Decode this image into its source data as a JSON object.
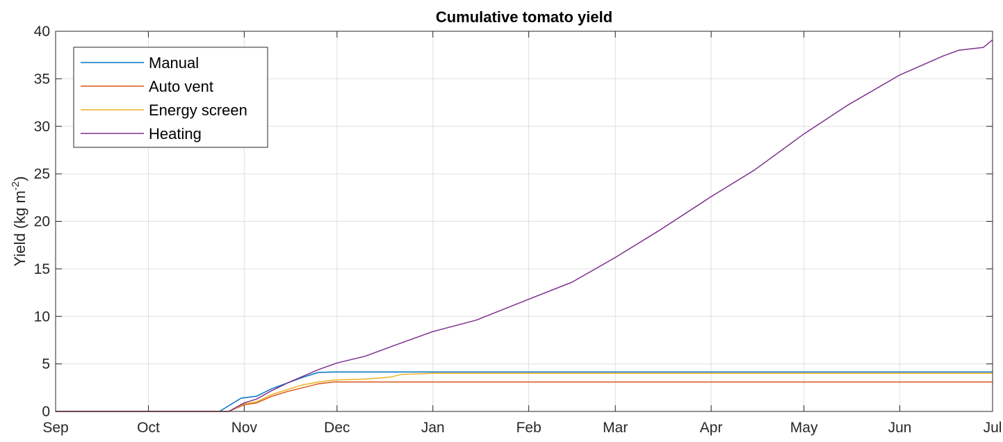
{
  "chart_data": {
    "type": "line",
    "title": "Cumulative tomato yield",
    "xlabel": "",
    "ylabel": "Yield (kg m",
    "ylabel_sup": "-2",
    "ylabel_close": ")",
    "x_ticks": [
      "Sep",
      "Oct",
      "Nov",
      "Dec",
      "Jan",
      "Feb",
      "Mar",
      "Apr",
      "May",
      "Jun",
      "Jul"
    ],
    "y_ticks": [
      "0",
      "5",
      "10",
      "15",
      "20",
      "25",
      "30",
      "35",
      "40"
    ],
    "ylim": [
      0,
      40
    ],
    "grid": true,
    "legend_position": "top-left",
    "series": [
      {
        "name": "Manual",
        "color": "#0072BD",
        "points": [
          [
            "Sep 1",
            0
          ],
          [
            "Oct 24",
            0
          ],
          [
            "Oct 31",
            1.4
          ],
          [
            "Nov 5",
            1.6
          ],
          [
            "Nov 10",
            2.4
          ],
          [
            "Nov 15",
            3.0
          ],
          [
            "Nov 20",
            3.6
          ],
          [
            "Nov 25",
            4.1
          ],
          [
            "Nov 30",
            4.15
          ],
          [
            "Jul 1",
            4.15
          ]
        ]
      },
      {
        "name": "Auto vent",
        "color": "#D95319",
        "points": [
          [
            "Sep 1",
            0
          ],
          [
            "Oct 27",
            0
          ],
          [
            "Nov 1",
            0.7
          ],
          [
            "Nov 5",
            0.9
          ],
          [
            "Nov 10",
            1.6
          ],
          [
            "Nov 15",
            2.1
          ],
          [
            "Nov 20",
            2.5
          ],
          [
            "Nov 25",
            2.9
          ],
          [
            "Nov 30",
            3.1
          ],
          [
            "Jul 1",
            3.1
          ]
        ]
      },
      {
        "name": "Energy screen",
        "color": "#EDB120",
        "points": [
          [
            "Sep 1",
            0
          ],
          [
            "Oct 27",
            0
          ],
          [
            "Nov 1",
            0.8
          ],
          [
            "Nov 5",
            1.0
          ],
          [
            "Nov 10",
            1.8
          ],
          [
            "Nov 15",
            2.3
          ],
          [
            "Nov 20",
            2.8
          ],
          [
            "Nov 25",
            3.1
          ],
          [
            "Nov 30",
            3.3
          ],
          [
            "Dec 10",
            3.4
          ],
          [
            "Dec 18",
            3.6
          ],
          [
            "Dec 22",
            3.9
          ],
          [
            "Jan 1",
            4.0
          ],
          [
            "Jul 1",
            4.0
          ]
        ]
      },
      {
        "name": "Heating",
        "color": "#7E2F8E",
        "points": [
          [
            "Sep 1",
            0
          ],
          [
            "Oct 27",
            0
          ],
          [
            "Nov 1",
            0.9
          ],
          [
            "Nov 5",
            1.3
          ],
          [
            "Nov 10",
            2.2
          ],
          [
            "Nov 15",
            3.0
          ],
          [
            "Nov 20",
            3.7
          ],
          [
            "Nov 25",
            4.4
          ],
          [
            "Dec 1",
            5.1
          ],
          [
            "Dec 10",
            5.8
          ],
          [
            "Dec 20",
            7.0
          ],
          [
            "Jan 1",
            8.4
          ],
          [
            "Jan 15",
            9.6
          ],
          [
            "Feb 1",
            11.8
          ],
          [
            "Feb 15",
            13.6
          ],
          [
            "Mar 1",
            16.2
          ],
          [
            "Mar 15",
            19.0
          ],
          [
            "Apr 1",
            22.6
          ],
          [
            "Apr 15",
            25.4
          ],
          [
            "May 1",
            29.2
          ],
          [
            "May 15",
            32.2
          ],
          [
            "Jun 1",
            35.4
          ],
          [
            "Jun 15",
            37.4
          ],
          [
            "Jun 20",
            38.0
          ],
          [
            "Jun 28",
            38.3
          ],
          [
            "Jul 1",
            39.1
          ]
        ]
      }
    ]
  }
}
